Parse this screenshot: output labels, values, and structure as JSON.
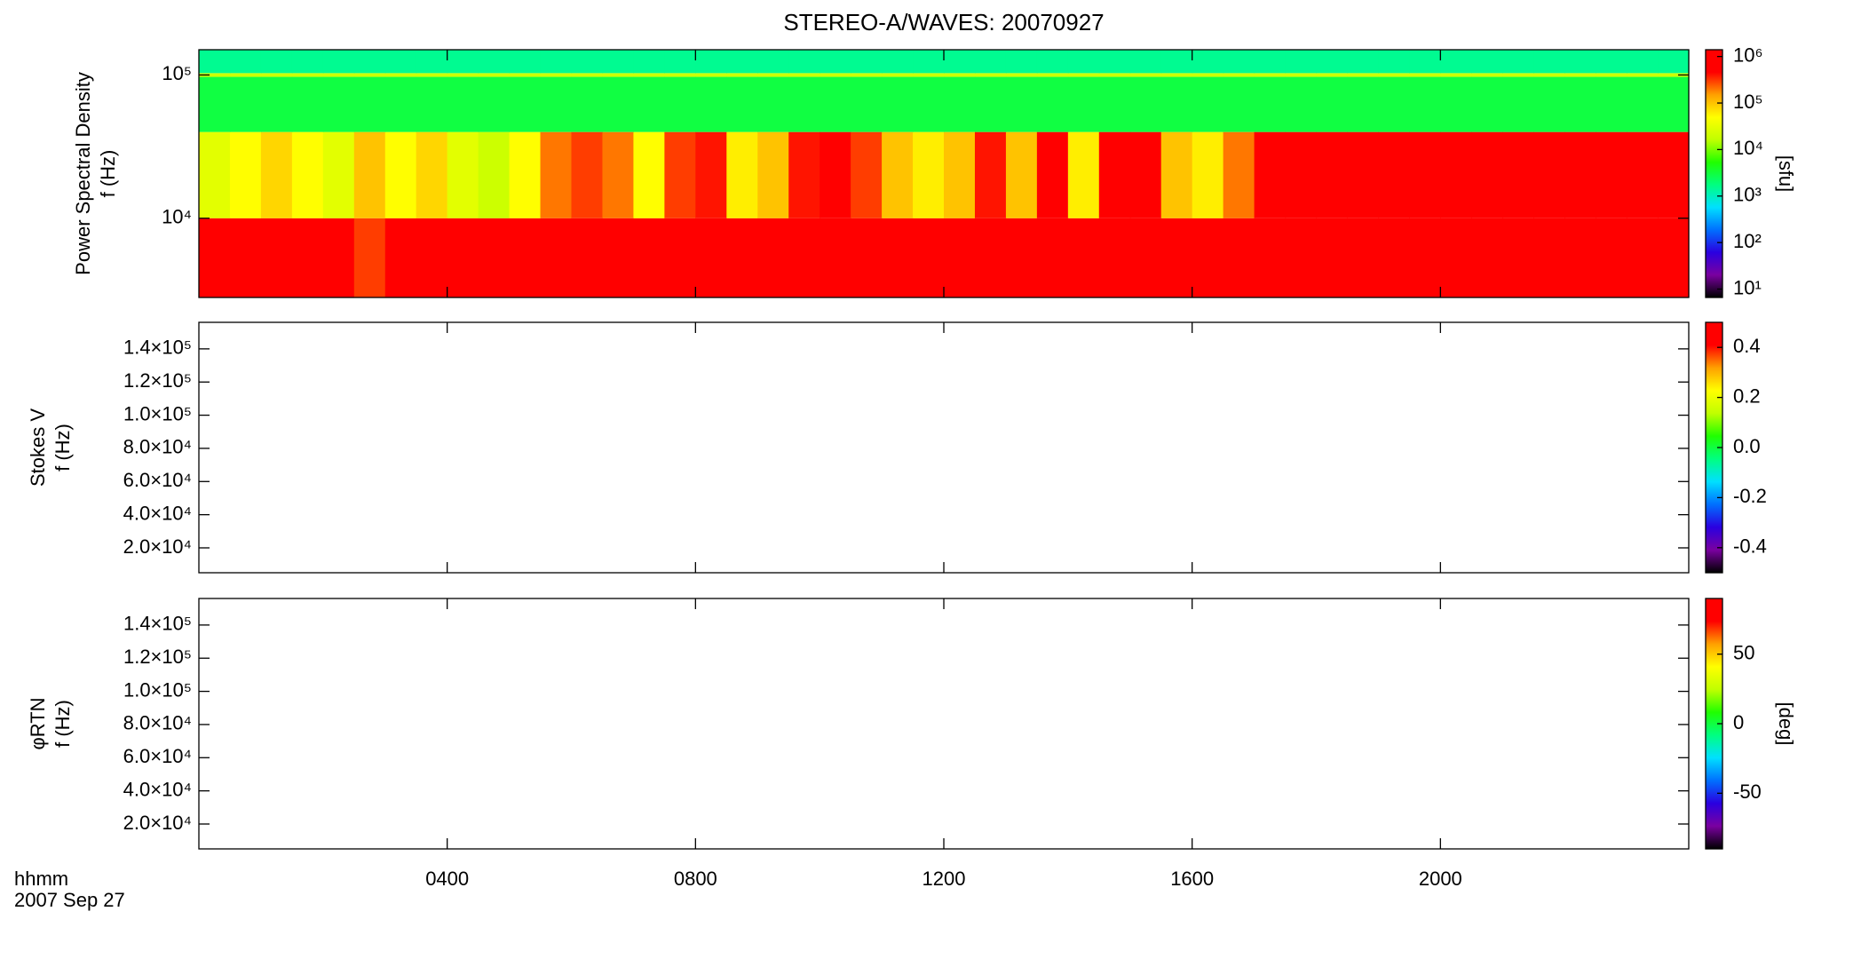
{
  "chart_data": [
    {
      "type": "heatmap",
      "title": "STEREO-A/WAVES: 20070927",
      "ylabel_lines": [
        "Power Spectral Density",
        "f (Hz)"
      ],
      "ylog": true,
      "ylim": [
        2800,
        150000
      ],
      "yticks": [
        {
          "value": 10000,
          "label": "10⁴"
        },
        {
          "value": 100000,
          "label": "10⁵"
        }
      ],
      "xlim": [
        0,
        24
      ],
      "xticks": [
        {
          "value": 4,
          "label": "0400"
        },
        {
          "value": 8,
          "label": "0800"
        },
        {
          "value": 12,
          "label": "1200"
        },
        {
          "value": 16,
          "label": "1600"
        },
        {
          "value": 20,
          "label": "2000"
        }
      ],
      "x_bins": [
        0,
        0.5,
        1,
        1.5,
        2,
        2.5,
        3,
        3.5,
        4,
        4.5,
        5,
        5.5,
        6,
        6.5,
        7,
        7.5,
        8,
        8.5,
        9,
        9.5,
        10,
        10.5,
        11,
        11.5,
        12,
        12.5,
        13,
        13.5,
        14,
        14.5,
        15,
        15.5,
        16,
        16.5,
        17,
        17.5,
        18,
        18.5,
        19,
        19.5,
        20,
        20.5,
        21,
        21.5,
        22,
        22.5,
        23,
        23.5,
        24
      ],
      "y_bins": [
        2800,
        10000,
        40000,
        97000,
        103000,
        150000
      ],
      "z": [
        [
          1000000,
          1000000,
          1000000,
          1000000,
          1000000,
          300000,
          1000000,
          1000000,
          1000000,
          1000000,
          1000000,
          1000000,
          1000000,
          1000000,
          1000000,
          1000000,
          1000000,
          1000000,
          1000000,
          1000000,
          1000000,
          1000000,
          1000000,
          1000000,
          1000000,
          1000000,
          1000000,
          1000000,
          1000000,
          1000000,
          1000000,
          1000000,
          1000000,
          1000000,
          1000000,
          1000000,
          1000000,
          1000000,
          1000000,
          1000000,
          1000000,
          1000000,
          1000000,
          1000000,
          1000000,
          1000000,
          1000000,
          1000000
        ],
        [
          30000,
          50000,
          80000,
          50000,
          30000,
          100000,
          50000,
          80000,
          30000,
          20000,
          50000,
          200000,
          300000,
          200000,
          50000,
          300000,
          400000,
          60000,
          100000,
          400000,
          600000,
          300000,
          100000,
          60000,
          100000,
          400000,
          100000,
          500000,
          60000,
          800000,
          800000,
          100000,
          60000,
          200000,
          600000,
          1000000,
          1000000,
          1000000,
          1000000,
          1000000,
          1000000,
          1000000,
          1000000,
          1000000,
          1000000,
          1000000,
          1000000,
          1000000
        ],
        [
          3000,
          3000,
          3000,
          3000,
          3000,
          3000,
          3000,
          3000,
          3000,
          3000,
          3000,
          3000,
          3000,
          3000,
          3000,
          3000,
          3000,
          3000,
          3000,
          3000,
          3000,
          3000,
          3000,
          3000,
          3000,
          3000,
          3000,
          3000,
          3000,
          3000,
          3000,
          3000,
          3000,
          3000,
          3000,
          3000,
          3000,
          3000,
          3000,
          3000,
          3000,
          3000,
          3000,
          3000,
          3000,
          3000,
          3000,
          3000
        ],
        [
          20000,
          20000,
          20000,
          20000,
          20000,
          20000,
          20000,
          20000,
          20000,
          20000,
          20000,
          20000,
          20000,
          20000,
          20000,
          20000,
          20000,
          20000,
          20000,
          20000,
          20000,
          20000,
          20000,
          20000,
          20000,
          20000,
          20000,
          20000,
          20000,
          20000,
          20000,
          20000,
          20000,
          20000,
          20000,
          20000,
          20000,
          20000,
          20000,
          20000,
          20000,
          20000,
          20000,
          20000,
          20000,
          20000,
          20000,
          20000
        ],
        [
          1500,
          1500,
          1500,
          1500,
          1500,
          1500,
          1500,
          1500,
          1500,
          1500,
          1500,
          1500,
          1500,
          1500,
          1500,
          1500,
          1500,
          1500,
          1500,
          1500,
          1500,
          1500,
          1500,
          1500,
          1500,
          1500,
          1500,
          1500,
          1500,
          1500,
          1500,
          1500,
          1500,
          1500,
          1500,
          1500,
          1500,
          1500,
          1500,
          1500,
          1500,
          1500,
          1500,
          1500,
          1500,
          1500,
          1500,
          1500
        ]
      ],
      "clog": true,
      "clim": [
        6.6,
        1400000
      ],
      "cticks": [
        {
          "value": 10,
          "label": "10¹"
        },
        {
          "value": 100,
          "label": "10²"
        },
        {
          "value": 1000,
          "label": "10³"
        },
        {
          "value": 10000,
          "label": "10⁴"
        },
        {
          "value": 100000,
          "label": "10⁵"
        },
        {
          "value": 1000000,
          "label": "10⁶"
        }
      ],
      "clabel": "[sfu]",
      "colormap": [
        "#000000",
        "#7a00a0",
        "#2a00e0",
        "#0070ff",
        "#00e0ff",
        "#00ff80",
        "#20ff00",
        "#c0ff00",
        "#ffff00",
        "#ffa000",
        "#ff0000",
        "#ff0000"
      ]
    },
    {
      "type": "heatmap",
      "ylabel_lines": [
        "Stokes V",
        "f (Hz)"
      ],
      "ylim": [
        5000,
        156000
      ],
      "yticks": [
        {
          "value": 20000,
          "label": "2.0×10⁴"
        },
        {
          "value": 40000,
          "label": "4.0×10⁴"
        },
        {
          "value": 60000,
          "label": "6.0×10⁴"
        },
        {
          "value": 80000,
          "label": "8.0×10⁴"
        },
        {
          "value": 100000,
          "label": "1.0×10⁵"
        },
        {
          "value": 120000,
          "label": "1.2×10⁵"
        },
        {
          "value": 140000,
          "label": "1.4×10⁵"
        }
      ],
      "xlim": [
        0,
        24
      ],
      "xticks": [
        4,
        8,
        12,
        16,
        20
      ],
      "clim": [
        -0.5,
        0.5
      ],
      "cticks": [
        -0.4,
        -0.2,
        {
          "value": 0,
          "label": "0.0"
        },
        0.2,
        0.4
      ],
      "colormap": [
        "#000000",
        "#7a00a0",
        "#2a00e0",
        "#0070ff",
        "#00e0ff",
        "#00ff80",
        "#20ff00",
        "#c0ff00",
        "#ffff00",
        "#ffa000",
        "#ff0000",
        "#ff0000"
      ]
    },
    {
      "type": "heatmap",
      "ylabel_lines": [
        "φRTN",
        "f (Hz)"
      ],
      "ylim": [
        5000,
        156000
      ],
      "yticks": [
        {
          "value": 20000,
          "label": "2.0×10⁴"
        },
        {
          "value": 40000,
          "label": "4.0×10⁴"
        },
        {
          "value": 60000,
          "label": "6.0×10⁴"
        },
        {
          "value": 80000,
          "label": "8.0×10⁴"
        },
        {
          "value": 100000,
          "label": "1.0×10⁵"
        },
        {
          "value": 120000,
          "label": "1.2×10⁵"
        },
        {
          "value": 140000,
          "label": "1.4×10⁵"
        }
      ],
      "xlim": [
        0,
        24
      ],
      "xticks": [
        {
          "value": 4,
          "label": "0400"
        },
        {
          "value": 8,
          "label": "0800"
        },
        {
          "value": 12,
          "label": "1200"
        },
        {
          "value": 16,
          "label": "1600"
        },
        {
          "value": 20,
          "label": "2000"
        }
      ],
      "xlabel_lines": [
        "hhmm",
        "2007 Sep 27"
      ],
      "clim": [
        -90,
        90
      ],
      "cticks": [
        -50,
        0,
        50
      ],
      "clabel": "[deg]",
      "colormap": [
        "#000000",
        "#7a00a0",
        "#2a00e0",
        "#0070ff",
        "#00e0ff",
        "#00ff80",
        "#20ff00",
        "#c0ff00",
        "#ffff00",
        "#ffa000",
        "#ff0000",
        "#ff0000"
      ]
    }
  ]
}
